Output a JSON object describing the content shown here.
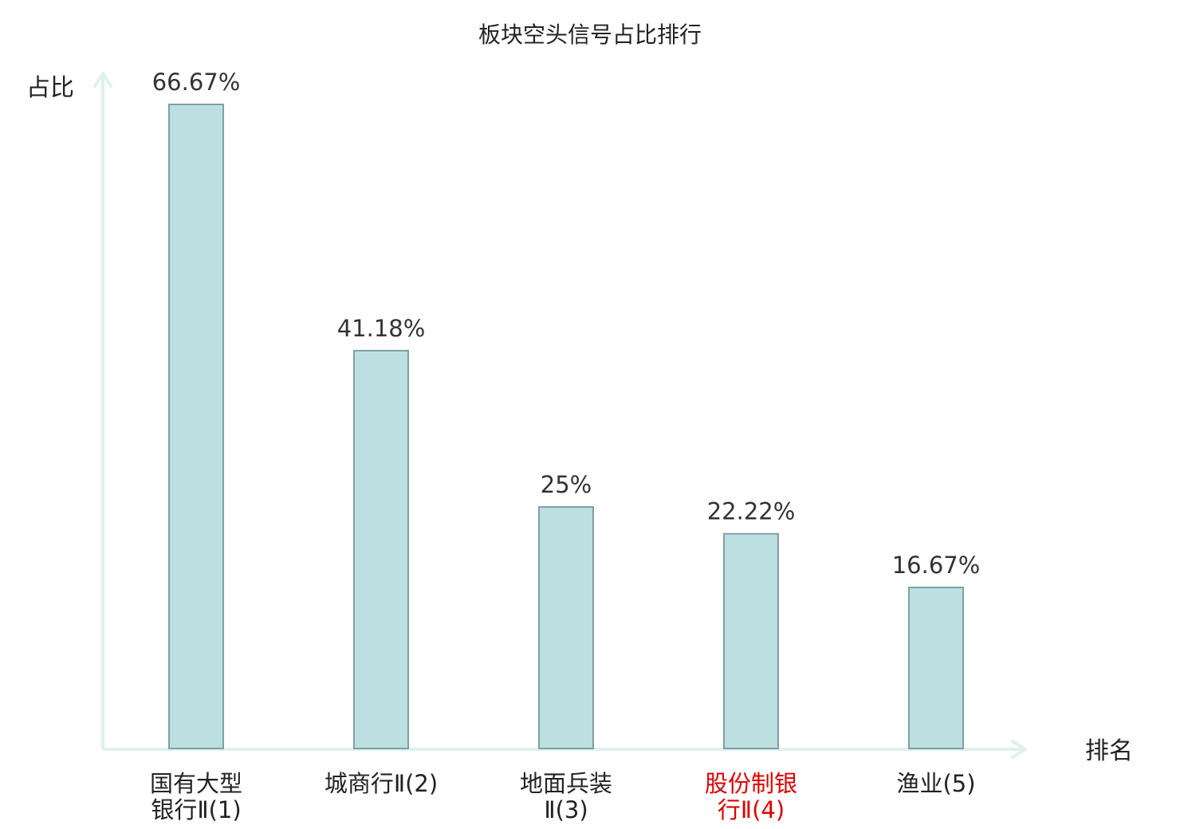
{
  "chart_data": {
    "type": "bar",
    "title": "板块空头信号占比排行",
    "ylabel": "占比",
    "xlabel": "排名",
    "categories": [
      [
        "国有大型",
        "银行Ⅱ(1)"
      ],
      [
        "城商行Ⅱ(2)"
      ],
      [
        "地面兵装",
        "Ⅱ(3)"
      ],
      [
        "股份制银",
        "行Ⅱ(4)"
      ],
      [
        "渔业(5)"
      ]
    ],
    "values": [
      66.67,
      41.18,
      25,
      22.22,
      16.67
    ],
    "value_labels": [
      "66.67%",
      "41.18%",
      "25%",
      "22.22%",
      "16.67%"
    ],
    "highlight_index": 3,
    "ylim": [
      0,
      66.67
    ],
    "grid": false,
    "colors": {
      "bar_fill": "#bce0e1",
      "bar_stroke": "#7f9fa2",
      "axis": "#dff1ee",
      "text": "#222222",
      "value_text": "#333333",
      "highlight": "#dd0000"
    }
  }
}
